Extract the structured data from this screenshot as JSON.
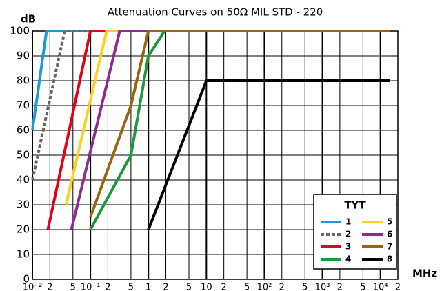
{
  "chart_data": {
    "type": "line",
    "title": "Attenuation Curves on 50Ω  MIL STD - 220",
    "y_label": "dB",
    "x_label": "MHz",
    "xscale": "log",
    "grid": true,
    "xlim": [
      0.01,
      20000
    ],
    "ylim": [
      0,
      100
    ],
    "yticks": [
      0,
      10,
      20,
      30,
      40,
      50,
      60,
      70,
      80,
      90,
      100
    ],
    "xticks": [
      {
        "value": 0.01,
        "label": "10⁻²"
      },
      {
        "value": 0.02,
        "label": "2"
      },
      {
        "value": 0.05,
        "label": "5"
      },
      {
        "value": 0.1,
        "label": "10⁻¹"
      },
      {
        "value": 0.2,
        "label": "2"
      },
      {
        "value": 0.5,
        "label": "5"
      },
      1,
      2,
      5,
      10,
      {
        "value": 20,
        "label": "2"
      },
      {
        "value": 50,
        "label": "5"
      },
      {
        "value": 100,
        "label": "10²"
      },
      {
        "value": 200,
        "label": "2"
      },
      {
        "value": 500,
        "label": "5"
      },
      {
        "value": 1000,
        "label": "10³"
      },
      {
        "value": 2000,
        "label": "2"
      },
      {
        "value": 5000,
        "label": "5"
      },
      {
        "value": 10000,
        "label": "10⁴"
      },
      {
        "value": 20000,
        "label": "2"
      }
    ],
    "legend_title": "TYT",
    "legend": "lower right",
    "series": [
      {
        "name": "1",
        "color": "#1a9ad6",
        "x": [
          0.01,
          0.0175,
          0.1
        ],
        "values": [
          60,
          100,
          100
        ]
      },
      {
        "name": "2",
        "color": "#666666",
        "style": "dashed",
        "x": [
          0.01,
          0.036,
          0.1
        ],
        "values": [
          40,
          100,
          100
        ]
      },
      {
        "name": "3",
        "color": "#e3001b",
        "x": [
          0.0185,
          0.1,
          0.2
        ],
        "values": [
          20,
          100,
          100
        ]
      },
      {
        "name": "4",
        "color": "#1a9a3a",
        "x": [
          0.1,
          0.5,
          1,
          1.9
        ],
        "values": [
          20,
          50,
          90,
          100
        ]
      },
      {
        "name": "5",
        "color": "#ffd21f",
        "x": [
          0.038,
          0.19,
          0.3
        ],
        "values": [
          30,
          100,
          100
        ]
      },
      {
        "name": "6",
        "color": "#8e2c8e",
        "x": [
          0.047,
          0.32,
          1
        ],
        "values": [
          20,
          100,
          100
        ]
      },
      {
        "name": "7",
        "color": "#9a6410",
        "x": [
          0.1,
          0.5,
          1,
          14500
        ],
        "values": [
          25,
          70,
          100,
          100
        ]
      },
      {
        "name": "8",
        "color": "#000000",
        "x": [
          1,
          10,
          14500
        ],
        "values": [
          20,
          80,
          80
        ]
      }
    ]
  }
}
